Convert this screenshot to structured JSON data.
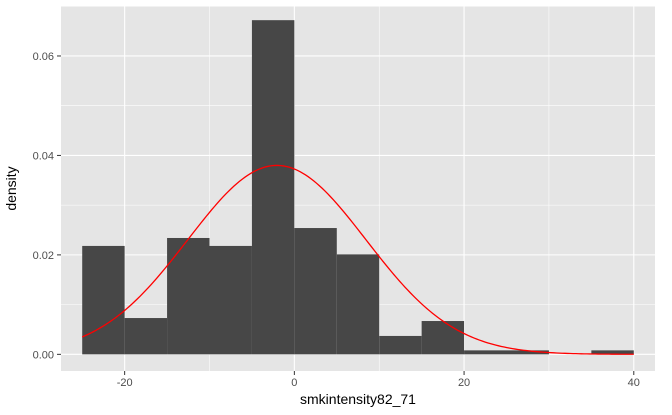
{
  "chart_data": {
    "type": "bar",
    "subtype": "histogram-with-density-curve",
    "title": "",
    "xlabel": "smkintensity82_71",
    "ylabel": "density",
    "xlim": [
      -27.5,
      42.5
    ],
    "ylim": [
      -0.00335,
      0.07005
    ],
    "x_ticks": [
      -20,
      0,
      20,
      40
    ],
    "x_tick_labels": [
      "-20",
      "0",
      "20",
      "40"
    ],
    "y_ticks": [
      0,
      0.02,
      0.04,
      0.06
    ],
    "y_tick_labels": [
      "0.00",
      "0.02",
      "0.04",
      "0.06"
    ],
    "grid": true,
    "bins": [
      {
        "x0": -25,
        "x1": -20,
        "density": 0.0218
      },
      {
        "x0": -20,
        "x1": -15,
        "density": 0.0073
      },
      {
        "x0": -15,
        "x1": -10,
        "density": 0.0234
      },
      {
        "x0": -10,
        "x1": -5,
        "density": 0.0218
      },
      {
        "x0": -5,
        "x1": 0,
        "density": 0.0672
      },
      {
        "x0": 0,
        "x1": 5,
        "density": 0.0254
      },
      {
        "x0": 5,
        "x1": 10,
        "density": 0.0201
      },
      {
        "x0": 10,
        "x1": 15,
        "density": 0.0037
      },
      {
        "x0": 15,
        "x1": 20,
        "density": 0.0067
      },
      {
        "x0": 20,
        "x1": 25,
        "density": 0.0008
      },
      {
        "x0": 25,
        "x1": 30,
        "density": 0.0008
      },
      {
        "x0": 30,
        "x1": 35,
        "density": 0.0
      },
      {
        "x0": 35,
        "x1": 40,
        "density": 0.0008
      }
    ],
    "curve": {
      "kind": "normal",
      "mean": -2.06,
      "sd": 10.5,
      "x_range": [
        -25,
        40
      ]
    },
    "colors": {
      "panel_background": "#e5e5e5",
      "grid": "#ffffff",
      "bar_fill": "#474747",
      "curve": "#ff0000"
    }
  }
}
